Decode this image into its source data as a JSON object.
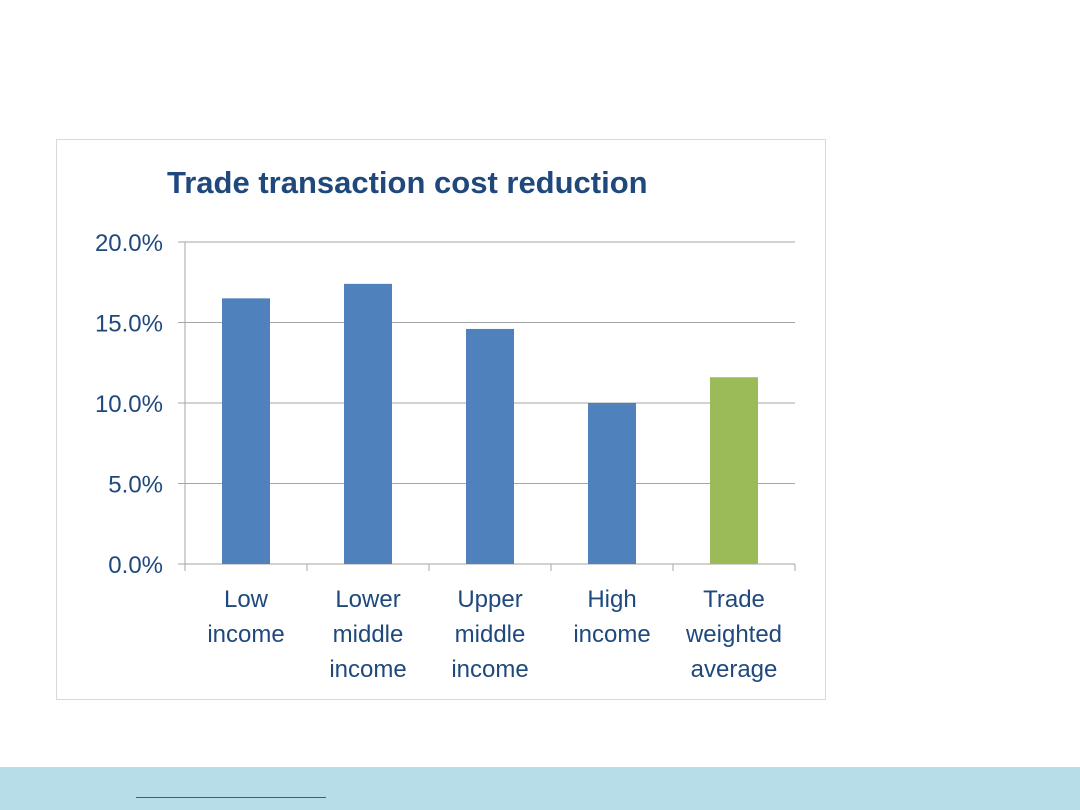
{
  "chart_data": {
    "type": "bar",
    "title": "Trade transaction cost reduction",
    "xlabel": "",
    "ylabel": "",
    "categories": [
      [
        "Low",
        "income"
      ],
      [
        "Lower",
        "middle",
        "income"
      ],
      [
        "Upper",
        "middle",
        "income"
      ],
      [
        "High",
        "income"
      ],
      [
        "Trade",
        "weighted",
        "average"
      ]
    ],
    "values": [
      16.5,
      17.4,
      14.6,
      10.0,
      11.6
    ],
    "bar_colors": [
      "#4f81bd",
      "#4f81bd",
      "#4f81bd",
      "#4f81bd",
      "#9bbb59"
    ],
    "ylim": [
      0,
      20
    ],
    "yticks": [
      0,
      5,
      10,
      15,
      20
    ],
    "ytick_labels": [
      "0.0%",
      "5.0%",
      "10.0%",
      "15.0%",
      "20.0%"
    ],
    "grid": true,
    "legend": "none"
  },
  "colors": {
    "text": "#1f497d",
    "grid": "#a6a6a6",
    "footer": "#b7dde8"
  }
}
